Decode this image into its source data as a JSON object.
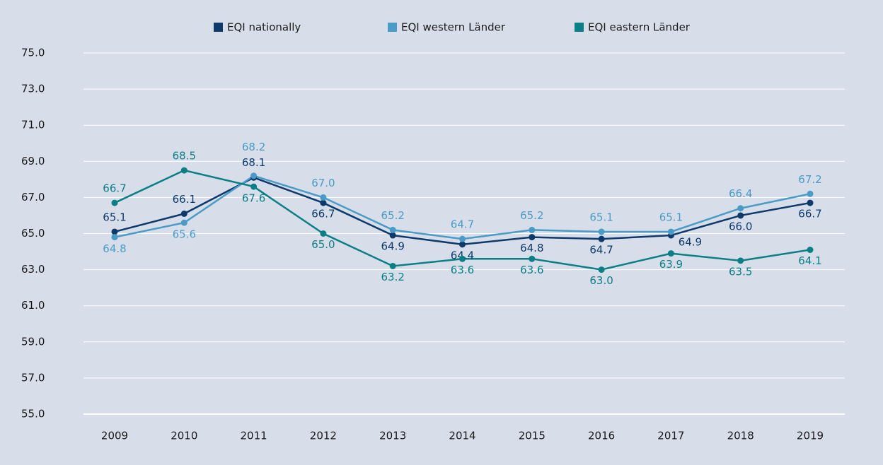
{
  "chart_data": {
    "type": "line",
    "categories": [
      "2009",
      "2010",
      "2011",
      "2012",
      "2013",
      "2014",
      "2015",
      "2016",
      "2017",
      "2018",
      "2019"
    ],
    "series": [
      {
        "name": "EQI nationally",
        "color": "#0d3a6b",
        "values": [
          65.1,
          66.1,
          68.1,
          66.7,
          64.9,
          64.4,
          64.8,
          64.7,
          64.9,
          66.0,
          66.7
        ],
        "value_labels": [
          "65.1",
          "66.1",
          "68.1",
          "66.7",
          "64.9",
          "64.4",
          "64.8",
          "64.7",
          "64.9",
          "66.0",
          "66.7"
        ]
      },
      {
        "name": "EQI western Länder",
        "color": "#4a9bc6",
        "values": [
          64.8,
          65.6,
          68.2,
          67.0,
          65.2,
          64.7,
          65.2,
          65.1,
          65.1,
          66.4,
          67.2
        ],
        "value_labels": [
          "64.8",
          "65.6",
          "68.2",
          "67.0",
          "65.2",
          "64.7",
          "65.2",
          "65.1",
          "65.1",
          "66.4",
          "67.2"
        ]
      },
      {
        "name": "EQI eastern Länder",
        "color": "#0a7f86",
        "values": [
          66.7,
          68.5,
          67.6,
          65.0,
          63.2,
          63.6,
          63.6,
          63.0,
          63.9,
          63.5,
          64.1
        ],
        "value_labels": [
          "66.7",
          "68.5",
          "67.6",
          "65.0",
          "63.2",
          "63.6",
          "63.6",
          "63.0",
          "63.9",
          "63.5",
          "64.1"
        ]
      }
    ],
    "ylim": [
      55,
      75
    ],
    "yticks": [
      {
        "value": 55,
        "label": "55.0"
      },
      {
        "value": 57,
        "label": "57.0"
      },
      {
        "value": 59,
        "label": "59.0"
      },
      {
        "value": 61,
        "label": "61.0"
      },
      {
        "value": 63,
        "label": "63.0"
      },
      {
        "value": 65,
        "label": "65.0"
      },
      {
        "value": 67,
        "label": "67.0"
      },
      {
        "value": 69,
        "label": "69.0"
      },
      {
        "value": 71,
        "label": "71.0"
      },
      {
        "value": 73,
        "label": "73.0"
      },
      {
        "value": 75,
        "label": "75.0"
      }
    ],
    "grid": true,
    "legend": "top"
  }
}
